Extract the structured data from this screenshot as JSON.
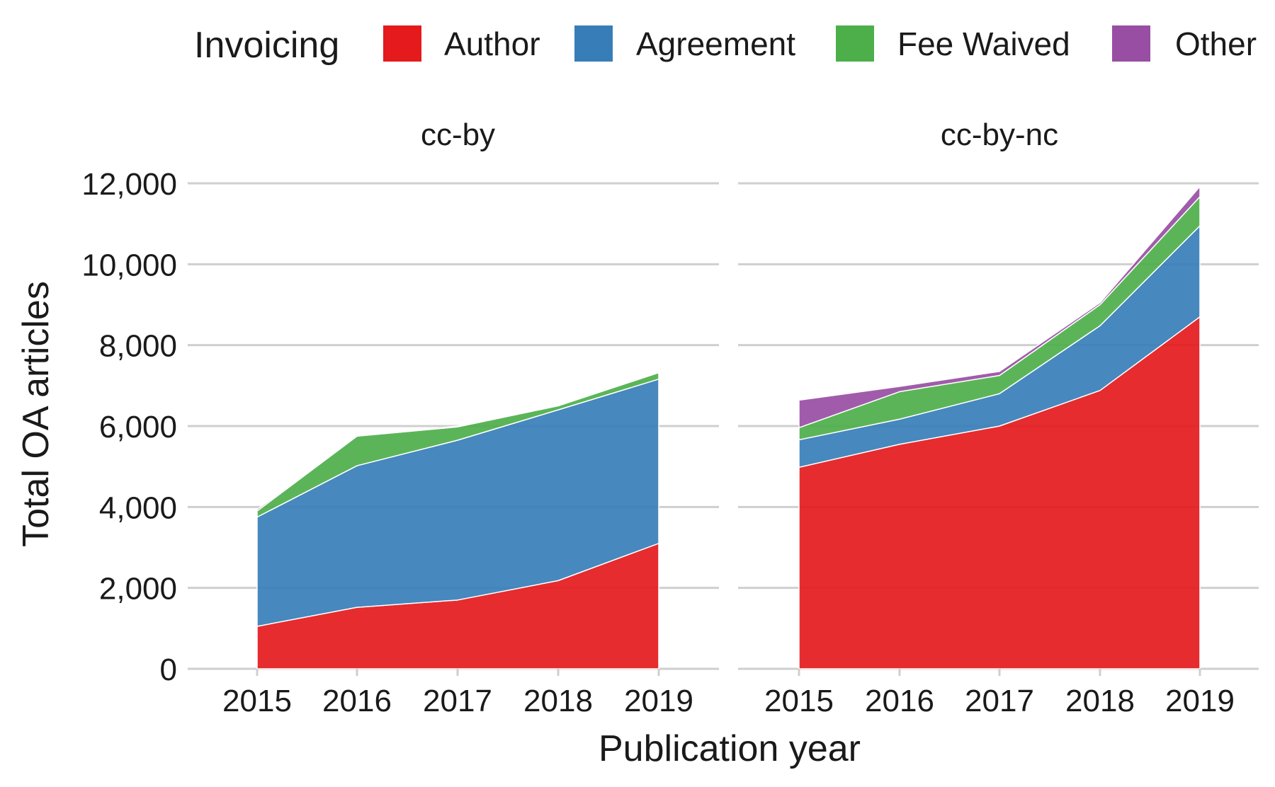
{
  "chart_data": {
    "type": "area",
    "stacked": true,
    "xlabel": "Publication year",
    "ylabel": "Total OA articles",
    "ylim": [
      0,
      12000
    ],
    "yticks": [
      0,
      2000,
      4000,
      6000,
      8000,
      10000,
      12000
    ],
    "ytick_labels": [
      "0",
      "2,000",
      "4,000",
      "6,000",
      "8,000",
      "10,000",
      "12,000"
    ],
    "categories": [
      "2015",
      "2016",
      "2017",
      "2018",
      "2019"
    ],
    "grid": "horizontal",
    "legend": {
      "title": "Invoicing",
      "position": "top",
      "entries": [
        {
          "name": "Author",
          "color": "#e41a1c"
        },
        {
          "name": "Agreement",
          "color": "#377eb8"
        },
        {
          "name": "Fee Waived",
          "color": "#4daf4a"
        },
        {
          "name": "Other",
          "color": "#984ea3"
        }
      ]
    },
    "panels": [
      {
        "title": "cc-by",
        "series": [
          {
            "name": "Author",
            "values": [
              1050,
              1520,
              1700,
              2180,
              3100
            ]
          },
          {
            "name": "Agreement",
            "values": [
              2700,
              3500,
              3950,
              4220,
              4060
            ]
          },
          {
            "name": "Fee Waived",
            "values": [
              150,
              730,
              330,
              100,
              160
            ]
          },
          {
            "name": "Other",
            "values": [
              40,
              0,
              20,
              20,
              20
            ]
          }
        ]
      },
      {
        "title": "cc-by-nc",
        "series": [
          {
            "name": "Author",
            "values": [
              4980,
              5550,
              6000,
              6880,
              8700
            ]
          },
          {
            "name": "Agreement",
            "values": [
              680,
              620,
              800,
              1600,
              2250
            ]
          },
          {
            "name": "Fee Waived",
            "values": [
              300,
              680,
              450,
              520,
              720
            ]
          },
          {
            "name": "Other",
            "values": [
              680,
              130,
              100,
              50,
              250
            ]
          }
        ]
      }
    ]
  }
}
